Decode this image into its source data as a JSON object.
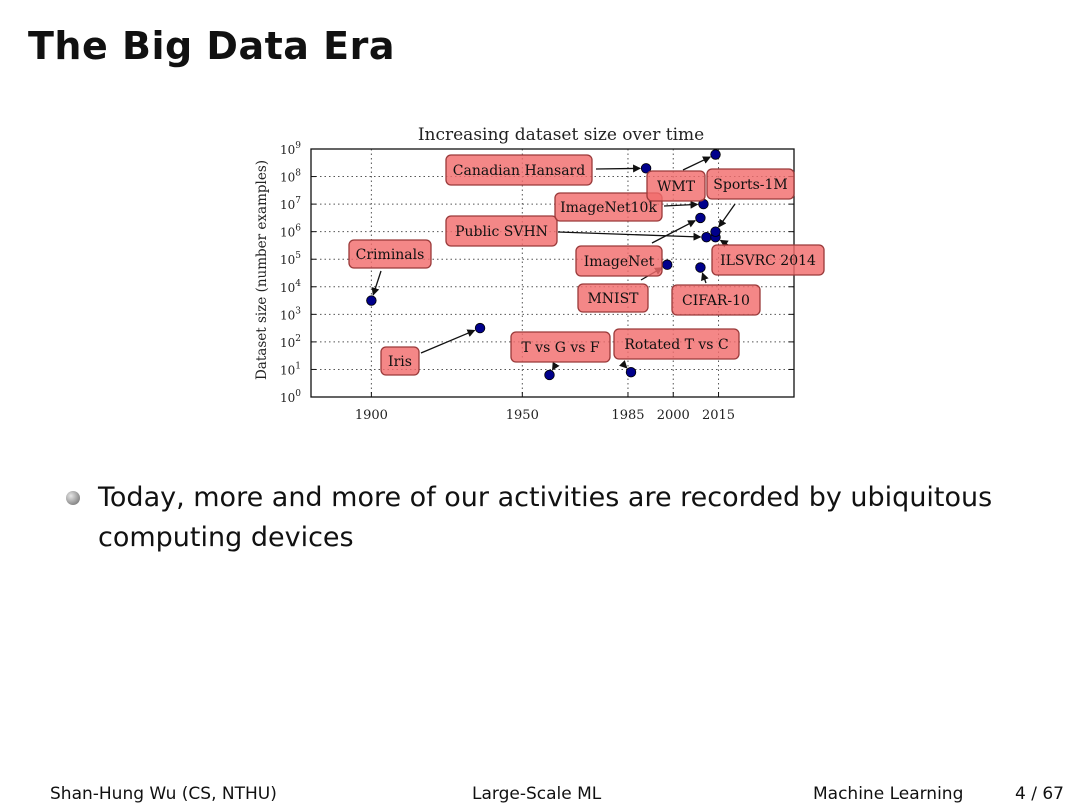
{
  "slide": {
    "title": "The Big Data Era",
    "bullet": "Today, more and more of our activities are recorded by ubiquitous computing devices"
  },
  "footer": {
    "author": "Shan-Hung Wu  (CS, NTHU)",
    "topic": "Large-Scale ML",
    "course": "Machine Learning",
    "page": "4 / 67"
  },
  "chart_data": {
    "type": "scatter",
    "title": "Increasing dataset size over time",
    "ylabel": "Dataset size (number examples)",
    "xlabel": "",
    "xlim": [
      1880,
      2040
    ],
    "ylim": [
      0,
      9
    ],
    "y_scale": "log10",
    "x_ticks": [
      1900,
      1950,
      1985,
      2000,
      2015
    ],
    "y_ticks": [
      0,
      1,
      2,
      3,
      4,
      5,
      6,
      7,
      8,
      9
    ],
    "grid": true,
    "marker_color": "#00008b",
    "label_color": "#f26d6d",
    "points": [
      {
        "name": "Criminals",
        "year": 1900,
        "log10_size": 3.5
      },
      {
        "name": "Iris",
        "year": 1936,
        "log10_size": 2.5
      },
      {
        "name": "T vs G vs F",
        "year": 1959,
        "log10_size": 0.8
      },
      {
        "name": "Rotated T vs C",
        "year": 1986,
        "log10_size": 0.9
      },
      {
        "name": "MNIST",
        "year": 1998,
        "log10_size": 4.8
      },
      {
        "name": "Canadian Hansard",
        "year": 1991,
        "log10_size": 8.3
      },
      {
        "name": "ImageNet",
        "year": 2009,
        "log10_size": 6.5
      },
      {
        "name": "Public SVHN",
        "year": 2011,
        "log10_size": 5.8
      },
      {
        "name": "ImageNet10k",
        "year": 2010,
        "log10_size": 7.0
      },
      {
        "name": "CIFAR-10",
        "year": 2009,
        "log10_size": 4.7
      },
      {
        "name": "ILSVRC 2014",
        "year": 2014,
        "log10_size": 5.8
      },
      {
        "name": "Sports-1M",
        "year": 2014,
        "log10_size": 6.0
      },
      {
        "name": "WMT",
        "year": 2014,
        "log10_size": 8.8
      }
    ]
  }
}
